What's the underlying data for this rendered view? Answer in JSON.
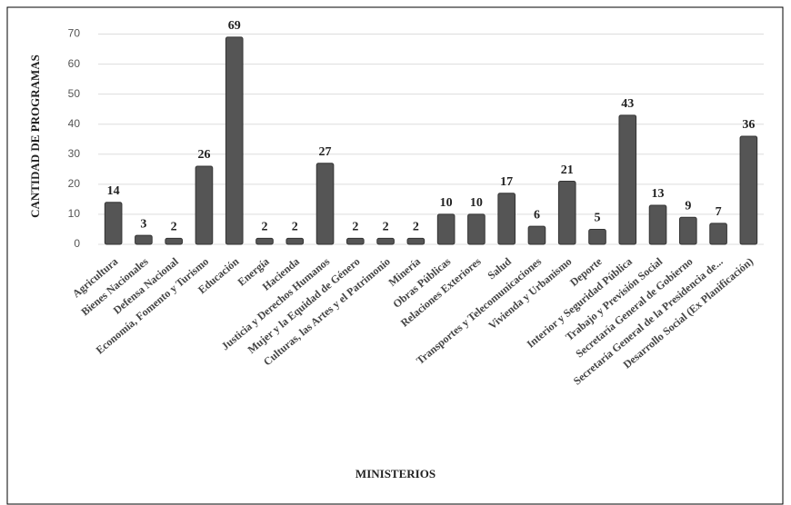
{
  "chart_data": {
    "type": "bar",
    "x_label": "MINISTERIOS",
    "y_label": "CANTIDAD DE PROGRAMAS",
    "categories": [
      "Agricultura",
      "Bienes Nacionales",
      "Defensa Nacional",
      "Economía, Fomento y Turismo",
      "Educación",
      "Energía",
      "Hacienda",
      "Justicia y Derechos Humanos",
      "Mujer y la Equidad de Género",
      "Culturas, las Artes y el Patrimonio",
      "Minería",
      "Obras Públicas",
      "Relaciones Exteriores",
      "Salud",
      "Transportes y Telecomunicaciones",
      "Vivienda y Urbanismo",
      "Deporte",
      "Interior y Seguridad Pública",
      "Trabajo y Previsión Social",
      "Secretaría General de Gobierno",
      "Secretaría General de la Presidencia de...",
      "Desarrollo Social (Ex Planificación)"
    ],
    "values": [
      14,
      3,
      2,
      26,
      69,
      2,
      2,
      27,
      2,
      2,
      2,
      10,
      10,
      17,
      6,
      21,
      5,
      43,
      13,
      9,
      7,
      36
    ],
    "color": "#555555",
    "ylim": [
      0,
      75
    ],
    "yticks": [
      0,
      10,
      20,
      30,
      40,
      50,
      60,
      70
    ],
    "grid": true
  }
}
